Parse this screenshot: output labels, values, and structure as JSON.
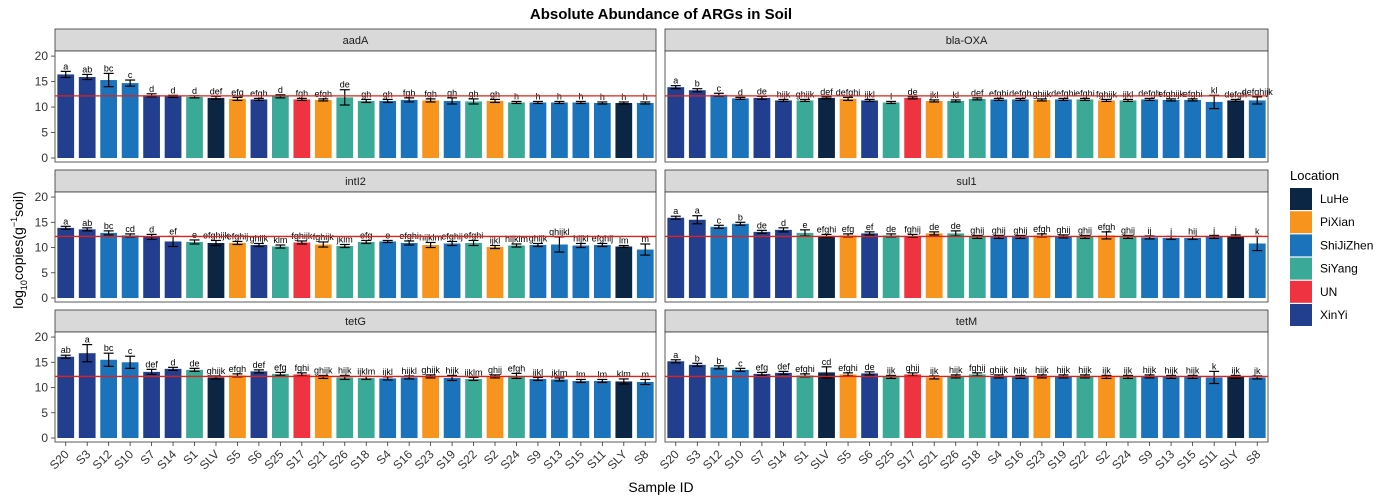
{
  "colors": {
    "LuHe": "#0b2545",
    "PiXian": "#f7941d",
    "ShiJiZhen": "#1a73bb",
    "SiYang": "#3aa998",
    "UN": "#ef3340",
    "XinYi": "#223f8f",
    "reference_line": "#e0201b",
    "strip_fill": "#d9d9d9",
    "panel_border": "#333333"
  },
  "chart_data": {
    "type": "bar",
    "title": "Absolute Abundance of ARGs in Soil",
    "xlabel": "Sample ID",
    "ylabel": "log10copies(g−1soil)",
    "ylabel_parts": {
      "a": "log",
      "b": "10",
      "c": "copies(g",
      "d": "−1",
      "e": "soil)"
    },
    "ylim": [
      0,
      21
    ],
    "yticks": [
      0,
      5,
      10,
      15,
      20
    ],
    "grid": false,
    "legend": {
      "title": "Location",
      "position": "right",
      "entries": [
        "LuHe",
        "PiXian",
        "ShiJiZhen",
        "SiYang",
        "UN",
        "XinYi"
      ]
    },
    "reference_line": 12.2,
    "categories": [
      "S20",
      "S3",
      "S12",
      "S10",
      "S7",
      "S14",
      "S1",
      "SLV",
      "S5",
      "S6",
      "S25",
      "S17",
      "S21",
      "S26",
      "S18",
      "S4",
      "S16",
      "S23",
      "S19",
      "S22",
      "S2",
      "S24",
      "S9",
      "S13",
      "S15",
      "S11",
      "SLY",
      "S8"
    ],
    "locations": [
      "XinYi",
      "XinYi",
      "ShiJiZhen",
      "ShiJiZhen",
      "XinYi",
      "XinYi",
      "SiYang",
      "LuHe",
      "PiXian",
      "XinYi",
      "SiYang",
      "UN",
      "PiXian",
      "SiYang",
      "SiYang",
      "ShiJiZhen",
      "ShiJiZhen",
      "PiXian",
      "ShiJiZhen",
      "SiYang",
      "PiXian",
      "SiYang",
      "ShiJiZhen",
      "ShiJiZhen",
      "ShiJiZhen",
      "ShiJiZhen",
      "LuHe",
      "ShiJiZhen"
    ],
    "panels": [
      {
        "name": "aadA",
        "values": [
          16.4,
          15.9,
          15.3,
          14.7,
          12.3,
          12.1,
          12.0,
          11.8,
          11.6,
          11.5,
          12.1,
          11.5,
          11.4,
          11.9,
          11.2,
          11.2,
          11.4,
          11.3,
          11.2,
          11.1,
          11.2,
          10.9,
          10.9,
          10.9,
          10.9,
          10.8,
          10.8,
          10.8
        ],
        "errors": [
          0.6,
          0.5,
          1.3,
          0.6,
          0.3,
          0.2,
          0.2,
          0.3,
          0.3,
          0.2,
          0.3,
          0.2,
          0.2,
          1.5,
          0.3,
          0.3,
          0.4,
          0.3,
          0.6,
          0.5,
          0.3,
          0.2,
          0.2,
          0.2,
          0.2,
          0.2,
          0.2,
          0.2
        ],
        "labels": [
          "a",
          "ab",
          "bc",
          "c",
          "d",
          "d",
          "d",
          "def",
          "efg",
          "efgh",
          "d",
          "fgh",
          "efgh",
          "de",
          "gh",
          "gh",
          "fgh",
          "fgh",
          "gh",
          "gh",
          "gh",
          "h",
          "h",
          "h",
          "h",
          "h",
          "h",
          "h"
        ]
      },
      {
        "name": "bla-OXA",
        "values": [
          13.9,
          13.3,
          12.4,
          11.7,
          11.8,
          11.3,
          11.3,
          11.8,
          11.6,
          11.3,
          10.9,
          11.8,
          11.2,
          11.2,
          11.6,
          11.5,
          11.5,
          11.4,
          11.5,
          11.5,
          11.3,
          11.3,
          11.5,
          11.4,
          11.4,
          11.0,
          11.3,
          11.3
        ],
        "errors": [
          0.3,
          0.3,
          0.3,
          0.2,
          0.3,
          0.2,
          0.2,
          0.2,
          0.3,
          0.2,
          0.2,
          0.2,
          0.2,
          0.2,
          0.2,
          0.2,
          0.2,
          0.2,
          0.2,
          0.2,
          0.2,
          0.2,
          0.2,
          0.2,
          0.2,
          1.3,
          0.2,
          0.7
        ],
        "labels": [
          "a",
          "b",
          "c",
          "d",
          "de",
          "hijk",
          "ghijk",
          "def",
          "defghi",
          "ijkl",
          "l",
          "de",
          "jkl",
          "kl",
          "def",
          "efghi",
          "defgh",
          "ghijk",
          "defghi",
          "efghi",
          "fghijk",
          "ijkl",
          "defgh",
          "efghijk",
          "efghi",
          "kl",
          "defgh",
          "defghijk"
        ]
      },
      {
        "name": "intI2",
        "values": [
          13.9,
          13.6,
          12.9,
          12.4,
          12.1,
          11.2,
          11.1,
          10.9,
          10.9,
          10.5,
          10.2,
          11.0,
          10.6,
          10.3,
          11.1,
          11.2,
          10.9,
          10.5,
          10.8,
          10.9,
          10.1,
          10.4,
          10.5,
          10.6,
          10.4,
          10.5,
          10.2,
          9.6
        ],
        "errors": [
          0.3,
          0.3,
          0.4,
          0.3,
          0.5,
          1.0,
          0.4,
          0.5,
          0.3,
          0.3,
          0.3,
          0.3,
          0.5,
          0.3,
          0.3,
          0.2,
          0.4,
          0.5,
          0.4,
          0.5,
          0.3,
          0.3,
          0.3,
          1.5,
          0.4,
          0.3,
          0.2,
          1.1
        ],
        "labels": [
          "a",
          "ab",
          "bc",
          "cd",
          "d",
          "ef",
          "e",
          "efghijk",
          "efghij",
          "ghijk",
          "klm",
          "fghijk",
          "fghijk",
          "jklm",
          "efg",
          "e",
          "efghi",
          "hijklm",
          "efghij",
          "efghi",
          "ijkl",
          "hijklm",
          "ghijk",
          "ghijkl",
          "hijkl",
          "efghij",
          "lm",
          "m"
        ]
      },
      {
        "name": "sul1",
        "values": [
          15.9,
          15.5,
          14.1,
          14.7,
          13.1,
          13.5,
          12.9,
          12.3,
          12.4,
          12.8,
          12.4,
          12.3,
          12.8,
          12.8,
          12.1,
          12.1,
          12.1,
          12.4,
          12.2,
          12.1,
          12.4,
          12.1,
          12.0,
          11.9,
          11.9,
          12.1,
          12.2,
          10.8
        ],
        "errors": [
          0.3,
          0.8,
          0.3,
          0.3,
          0.3,
          0.4,
          0.6,
          0.3,
          0.3,
          0.3,
          0.3,
          0.3,
          0.3,
          0.5,
          0.3,
          0.3,
          0.3,
          0.3,
          0.3,
          0.3,
          0.7,
          0.3,
          0.3,
          0.3,
          0.3,
          0.3,
          0.3,
          1.4
        ],
        "labels": [
          "a",
          "a",
          "c",
          "b",
          "de",
          "d",
          "e",
          "efghi",
          "efg",
          "ef",
          "de",
          "fghij",
          "de",
          "de",
          "ghij",
          "ghij",
          "ghij",
          "efgh",
          "ghij",
          "ghij",
          "efgh",
          "ghij",
          "ij",
          "j",
          "hij",
          "j",
          "j",
          "k"
        ]
      },
      {
        "name": "tetG",
        "values": [
          16.1,
          16.8,
          15.5,
          15.0,
          13.1,
          13.7,
          13.5,
          12.0,
          12.4,
          13.2,
          12.7,
          12.6,
          12.1,
          12.0,
          11.9,
          11.8,
          12.0,
          12.2,
          11.9,
          11.7,
          12.2,
          12.3,
          11.7,
          11.6,
          11.3,
          11.3,
          11.2,
          11.1
        ],
        "errors": [
          0.3,
          1.7,
          1.3,
          1.2,
          0.5,
          0.3,
          0.3,
          0.3,
          0.3,
          0.3,
          0.3,
          0.3,
          0.3,
          0.4,
          0.3,
          0.3,
          0.3,
          0.3,
          0.5,
          0.3,
          0.3,
          0.5,
          0.3,
          0.3,
          0.3,
          0.3,
          0.5,
          0.5
        ],
        "labels": [
          "ab",
          "a",
          "bc",
          "c",
          "def",
          "d",
          "de",
          "ghijk",
          "efgh",
          "def",
          "efg",
          "fghi",
          "ghijk",
          "hijk",
          "ijklm",
          "ijkl",
          "hijkl",
          "ghijk",
          "hijk",
          "ijklm",
          "ghij",
          "efgh",
          "ijkl",
          "jklm",
          "lm",
          "lm",
          "klm",
          "m"
        ]
      },
      {
        "name": "tetM",
        "values": [
          15.2,
          14.5,
          14.0,
          13.5,
          12.7,
          12.9,
          12.4,
          13.0,
          12.6,
          12.8,
          12.1,
          12.6,
          12.0,
          12.2,
          12.6,
          12.2,
          12.1,
          12.2,
          12.2,
          12.2,
          12.1,
          12.1,
          12.2,
          12.1,
          12.1,
          12.0,
          12.1,
          12.0
        ],
        "errors": [
          0.3,
          0.3,
          0.3,
          0.3,
          0.3,
          0.3,
          0.3,
          1.1,
          0.3,
          0.3,
          0.3,
          0.3,
          0.3,
          0.3,
          0.3,
          0.3,
          0.3,
          0.3,
          0.3,
          0.3,
          0.3,
          0.3,
          0.3,
          0.3,
          0.3,
          1.2,
          0.3,
          0.3
        ],
        "labels": [
          "a",
          "b",
          "b",
          "c",
          "efg",
          "def",
          "efghi",
          "cd",
          "efghi",
          "de",
          "ijk",
          "ghij",
          "ijk",
          "hijk",
          "fghij",
          "ghijk",
          "hijk",
          "hijk",
          "hijk",
          "hijk",
          "ijk",
          "ijk",
          "hijk",
          "hijk",
          "hijk",
          "k",
          "ijk",
          "jk"
        ]
      }
    ]
  }
}
